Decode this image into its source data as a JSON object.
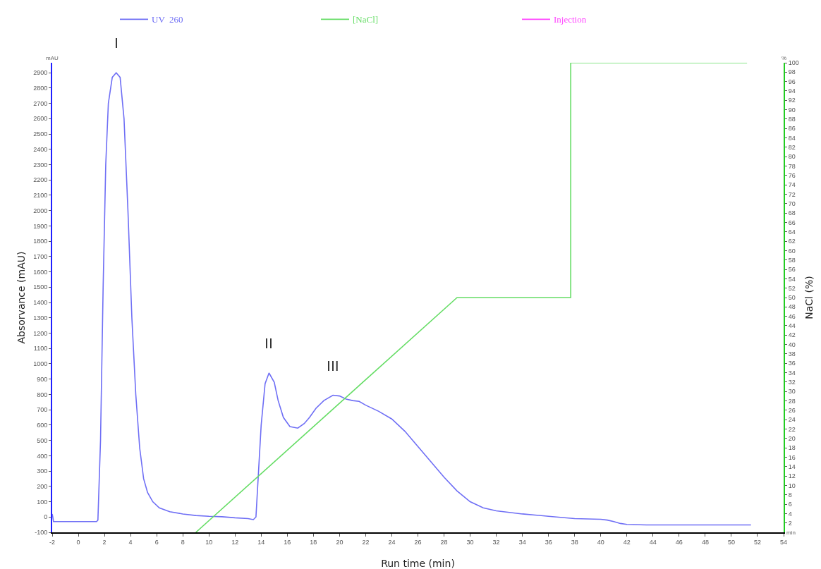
{
  "chart_data": {
    "type": "line",
    "xlabel": "Run time (min)",
    "ylabel": "Absorvance (mAU)",
    "y2label": "NaCl (%)",
    "legend": "top",
    "grid": false,
    "marker": "none",
    "line_style": "solid",
    "xlim": [
      -2,
      54
    ],
    "xticks": [
      -2,
      0,
      2,
      4,
      6,
      8,
      10,
      12,
      14,
      16,
      18,
      20,
      22,
      24,
      26,
      28,
      30,
      32,
      34,
      36,
      38,
      40,
      42,
      44,
      46,
      48,
      50,
      52,
      54
    ],
    "ylim": [
      -100,
      2965
    ],
    "yticks": [
      -100,
      0,
      100,
      200,
      300,
      400,
      500,
      600,
      700,
      800,
      900,
      1000,
      1100,
      1200,
      1300,
      1400,
      1500,
      1600,
      1700,
      1800,
      1900,
      2000,
      2100,
      2200,
      2300,
      2400,
      2500,
      2600,
      2700,
      2800,
      2900
    ],
    "y2lim": [
      0,
      100
    ],
    "y2ticks": [
      2,
      4,
      6,
      8,
      10,
      12,
      14,
      16,
      18,
      20,
      22,
      24,
      26,
      28,
      30,
      32,
      34,
      36,
      38,
      40,
      42,
      44,
      46,
      48,
      50,
      52,
      54,
      56,
      58,
      60,
      62,
      64,
      66,
      68,
      70,
      72,
      74,
      76,
      78,
      80,
      82,
      84,
      86,
      88,
      90,
      92,
      94,
      96,
      98,
      100
    ],
    "series": [
      {
        "name": "UV  260",
        "color": "#6f6ff5",
        "x": [
          -2,
          -1.95,
          -1.9,
          1.4,
          1.5,
          1.7,
          1.9,
          2.1,
          2.3,
          2.6,
          2.9,
          3.2,
          3.5,
          3.8,
          4.1,
          4.4,
          4.7,
          5.0,
          5.3,
          5.7,
          6.2,
          7,
          8,
          9,
          10,
          11,
          12,
          13,
          13.4,
          13.6,
          13.8,
          14.0,
          14.3,
          14.6,
          15.0,
          15.3,
          15.7,
          16.2,
          16.8,
          17.3,
          17.7,
          18.2,
          18.8,
          19.5,
          20,
          20.5,
          21,
          21.5,
          22,
          23,
          24,
          25,
          26,
          27,
          28,
          29,
          30,
          31,
          32,
          34,
          36,
          38,
          40,
          40.5,
          41,
          41.5,
          42,
          43.5,
          51.5
        ],
        "values": [
          20,
          0,
          -30,
          -30,
          -20,
          500,
          1500,
          2300,
          2700,
          2870,
          2900,
          2870,
          2600,
          2000,
          1300,
          800,
          450,
          250,
          160,
          100,
          60,
          35,
          20,
          10,
          5,
          2,
          -5,
          -10,
          -17,
          0,
          300,
          600,
          870,
          940,
          880,
          760,
          650,
          590,
          580,
          610,
          650,
          710,
          760,
          795,
          790,
          770,
          760,
          755,
          730,
          690,
          640,
          560,
          460,
          360,
          260,
          170,
          100,
          60,
          40,
          20,
          5,
          -10,
          -15,
          -20,
          -30,
          -42,
          -48,
          -52,
          -52
        ]
      },
      {
        "name": "[NaCl]",
        "color": "#66dd66",
        "axis": "y2",
        "x": [
          9,
          29,
          37.7,
          37.7,
          51.2
        ],
        "values": [
          0,
          50,
          50,
          100,
          100
        ]
      },
      {
        "name": "Injection",
        "color": "#ff44ff"
      }
    ],
    "annotations": [
      {
        "text": "I",
        "x": 2.9,
        "y": 2900
      },
      {
        "text": "II",
        "x": 14.6,
        "y": 940
      },
      {
        "text": "III",
        "x": 19.5,
        "y": 795
      },
      "mAU",
      "%",
      "min"
    ]
  }
}
